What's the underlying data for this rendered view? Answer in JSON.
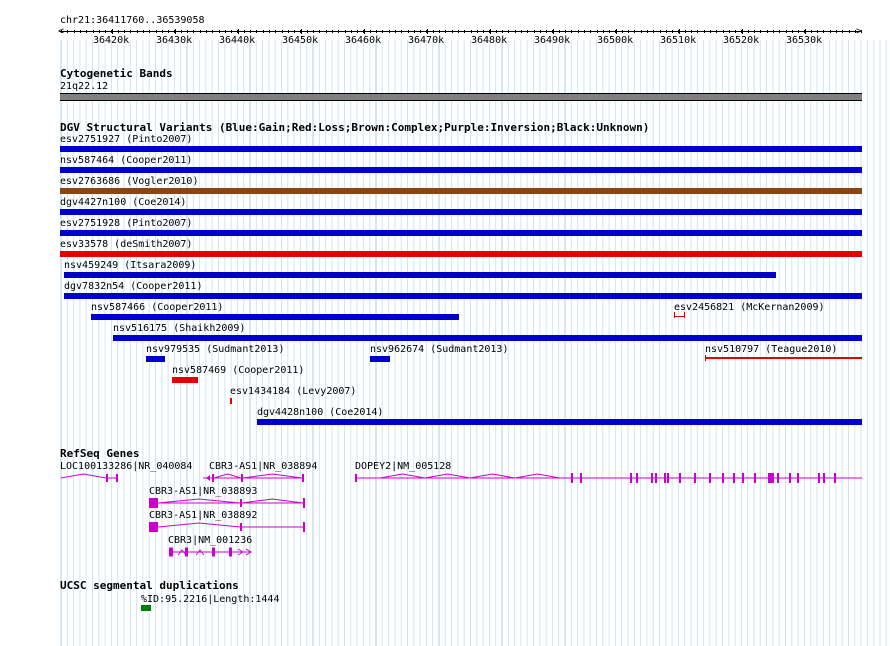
{
  "ruler": {
    "position": "chr21:36411760..36539058",
    "ticks": [
      "36420k",
      "36430k",
      "36440k",
      "36450k",
      "36460k",
      "36470k",
      "36480k",
      "36490k",
      "36500k",
      "36510k",
      "36520k",
      "36530k"
    ]
  },
  "cytobands": {
    "title": "Cytogenetic Bands",
    "band": "21q22.12"
  },
  "dgv": {
    "title": "DGV Structural Variants (Blue:Gain;Red:Loss;Brown:Complex;Purple:Inversion;Black:Unknown)",
    "colors": {
      "gain": "#0000cc",
      "loss": "#e60000",
      "complex": "#8b4513",
      "unknown": "#000000"
    },
    "variants": [
      {
        "label": "esv2751927 (Pinto2007)",
        "type": "gain"
      },
      {
        "label": "nsv587464 (Cooper2011)",
        "type": "gain"
      },
      {
        "label": "esv2763686 (Vogler2010)",
        "type": "complex"
      },
      {
        "label": "dgv4427n100 (Coe2014)",
        "type": "gain"
      },
      {
        "label": "esv2751928 (Pinto2007)",
        "type": "gain"
      },
      {
        "label": "esv33578 (deSmith2007)",
        "type": "loss"
      },
      {
        "label": "nsv459249 (Itsara2009)",
        "type": "gain"
      },
      {
        "label": "dgv7832n54 (Cooper2011)",
        "type": "gain"
      },
      {
        "label": "nsv587466 (Cooper2011)",
        "type": "gain"
      },
      {
        "label": "esv2456821 (McKernan2009)",
        "type": "loss"
      },
      {
        "label": "nsv516175 (Shaikh2009)",
        "type": "gain"
      },
      {
        "label": "nsv979535 (Sudmant2013)",
        "type": "gain"
      },
      {
        "label": "nsv962674 (Sudmant2013)",
        "type": "gain"
      },
      {
        "label": "nsv510797 (Teague2010)",
        "type": "loss"
      },
      {
        "label": "nsv587469 (Cooper2011)",
        "type": "loss"
      },
      {
        "label": "esv1434184 (Levy2007)",
        "type": "loss"
      },
      {
        "label": "dgv4428n100 (Coe2014)",
        "type": "gain"
      }
    ]
  },
  "refseq": {
    "title": "RefSeq Genes",
    "color": "#cc00cc",
    "genes": [
      {
        "label": "LOC100133286|NR_040084"
      },
      {
        "label": "CBR3-AS1|NR_038894"
      },
      {
        "label": "DOPEY2|NM_005128"
      },
      {
        "label": "CBR3-AS1|NR_038893"
      },
      {
        "label": "CBR3-AS1|NR_038892"
      },
      {
        "label": "CBR3|NM_001236"
      }
    ]
  },
  "segdup": {
    "title": "UCSC segmental duplications",
    "label": "%ID:95.2216|Length:1444",
    "color": "#008000"
  }
}
